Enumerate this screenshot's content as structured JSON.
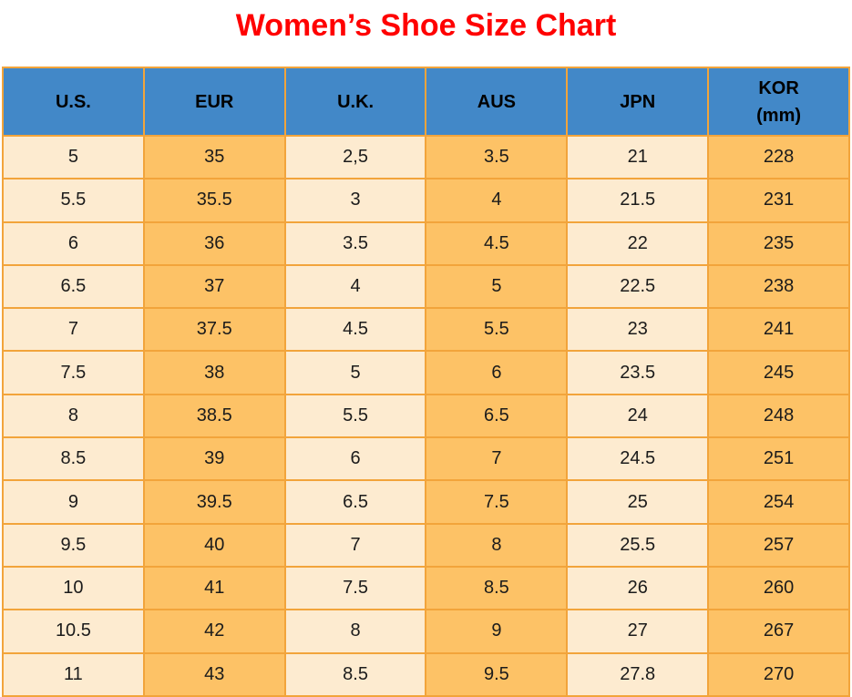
{
  "page_title": "Women’s Shoe Size Chart",
  "colors": {
    "title": "#FF0000",
    "header_bg": "#4288C8",
    "header_text": "#000000",
    "cell_text": "#1B1B1B",
    "col_cream": "#FDEBD0",
    "col_orange": "#FDC266",
    "grid_border": "#F2A43B",
    "background": "#FFFFFF"
  },
  "header": {
    "cells": [
      {
        "line1": "U.S.",
        "line2": ""
      },
      {
        "line1": "EUR",
        "line2": ""
      },
      {
        "line1": "U.K.",
        "line2": ""
      },
      {
        "line1": "AUS",
        "line2": ""
      },
      {
        "line1": "JPN",
        "line2": ""
      },
      {
        "line1": "KOR",
        "line2": "(mm)"
      }
    ]
  },
  "chart_data": {
    "type": "table",
    "title": "Women’s Shoe Size Chart",
    "columns": [
      "U.S.",
      "EUR",
      "U.K.",
      "AUS",
      "JPN",
      "KOR (mm)"
    ],
    "rows": [
      [
        "5",
        "35",
        "2,5",
        "3.5",
        "21",
        "228"
      ],
      [
        "5.5",
        "35.5",
        "3",
        "4",
        "21.5",
        "231"
      ],
      [
        "6",
        "36",
        "3.5",
        "4.5",
        "22",
        "235"
      ],
      [
        "6.5",
        "37",
        "4",
        "5",
        "22.5",
        "238"
      ],
      [
        "7",
        "37.5",
        "4.5",
        "5.5",
        "23",
        "241"
      ],
      [
        "7.5",
        "38",
        "5",
        "6",
        "23.5",
        "245"
      ],
      [
        "8",
        "38.5",
        "5.5",
        "6.5",
        "24",
        "248"
      ],
      [
        "8.5",
        "39",
        "6",
        "7",
        "24.5",
        "251"
      ],
      [
        "9",
        "39.5",
        "6.5",
        "7.5",
        "25",
        "254"
      ],
      [
        "9.5",
        "40",
        "7",
        "8",
        "25.5",
        "257"
      ],
      [
        "10",
        "41",
        "7.5",
        "8.5",
        "26",
        "260"
      ],
      [
        "10.5",
        "42",
        "8",
        "9",
        "27",
        "267"
      ],
      [
        "11",
        "43",
        "8.5",
        "9.5",
        "27.8",
        "270"
      ]
    ]
  }
}
